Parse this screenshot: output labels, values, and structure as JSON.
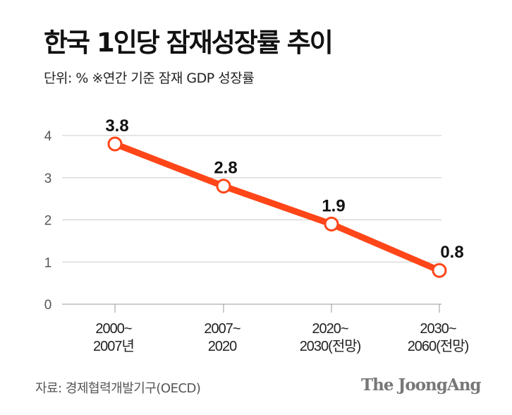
{
  "title": "한국 1인당 잠재성장률 추이",
  "subtitle": "단위: %  ※연간 기준 잠재 GDP 성장률",
  "source": "자료: 경제협력개발기구(OECD)",
  "logo": "The JoongAng",
  "chart_data": {
    "type": "line",
    "categories": [
      [
        "2000~",
        "2007년"
      ],
      [
        "2007~",
        "2020"
      ],
      [
        "2020~",
        "2030(전망)"
      ],
      [
        "2030~",
        "2060(전망)"
      ]
    ],
    "values": [
      3.8,
      2.8,
      1.9,
      0.8
    ],
    "data_labels": [
      "3.8",
      "2.8",
      "1.9",
      "0.8"
    ],
    "yticks": [
      "0",
      "1",
      "2",
      "3",
      "4"
    ],
    "ylim": [
      0,
      4
    ],
    "grid": true,
    "line_color": "#ff4619"
  }
}
